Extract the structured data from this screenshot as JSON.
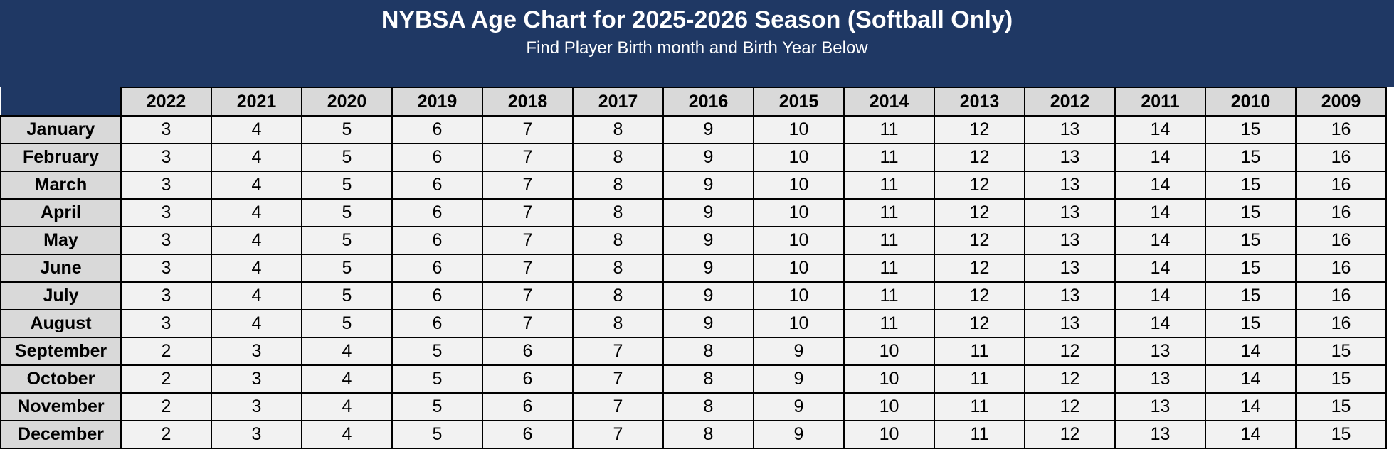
{
  "title": "NYBSA Age Chart for 2025-2026 Season (Softball Only)",
  "subtitle": "Find Player Birth month and Birth Year Below",
  "colors": {
    "banner": "#1f3864",
    "header_fill": "#d9d9d9",
    "cell_fill": "#f2f2f2",
    "border": "#000000"
  },
  "years": [
    "2022",
    "2021",
    "2020",
    "2019",
    "2018",
    "2017",
    "2016",
    "2015",
    "2014",
    "2013",
    "2012",
    "2011",
    "2010",
    "2009"
  ],
  "rows": [
    {
      "month": "January",
      "ages": [
        "3",
        "4",
        "5",
        "6",
        "7",
        "8",
        "9",
        "10",
        "11",
        "12",
        "13",
        "14",
        "15",
        "16"
      ]
    },
    {
      "month": "February",
      "ages": [
        "3",
        "4",
        "5",
        "6",
        "7",
        "8",
        "9",
        "10",
        "11",
        "12",
        "13",
        "14",
        "15",
        "16"
      ]
    },
    {
      "month": "March",
      "ages": [
        "3",
        "4",
        "5",
        "6",
        "7",
        "8",
        "9",
        "10",
        "11",
        "12",
        "13",
        "14",
        "15",
        "16"
      ]
    },
    {
      "month": "April",
      "ages": [
        "3",
        "4",
        "5",
        "6",
        "7",
        "8",
        "9",
        "10",
        "11",
        "12",
        "13",
        "14",
        "15",
        "16"
      ]
    },
    {
      "month": "May",
      "ages": [
        "3",
        "4",
        "5",
        "6",
        "7",
        "8",
        "9",
        "10",
        "11",
        "12",
        "13",
        "14",
        "15",
        "16"
      ]
    },
    {
      "month": "June",
      "ages": [
        "3",
        "4",
        "5",
        "6",
        "7",
        "8",
        "9",
        "10",
        "11",
        "12",
        "13",
        "14",
        "15",
        "16"
      ]
    },
    {
      "month": "July",
      "ages": [
        "3",
        "4",
        "5",
        "6",
        "7",
        "8",
        "9",
        "10",
        "11",
        "12",
        "13",
        "14",
        "15",
        "16"
      ]
    },
    {
      "month": "August",
      "ages": [
        "3",
        "4",
        "5",
        "6",
        "7",
        "8",
        "9",
        "10",
        "11",
        "12",
        "13",
        "14",
        "15",
        "16"
      ]
    },
    {
      "month": "September",
      "ages": [
        "2",
        "3",
        "4",
        "5",
        "6",
        "7",
        "8",
        "9",
        "10",
        "11",
        "12",
        "13",
        "14",
        "15"
      ]
    },
    {
      "month": "October",
      "ages": [
        "2",
        "3",
        "4",
        "5",
        "6",
        "7",
        "8",
        "9",
        "10",
        "11",
        "12",
        "13",
        "14",
        "15"
      ]
    },
    {
      "month": "November",
      "ages": [
        "2",
        "3",
        "4",
        "5",
        "6",
        "7",
        "8",
        "9",
        "10",
        "11",
        "12",
        "13",
        "14",
        "15"
      ]
    },
    {
      "month": "December",
      "ages": [
        "2",
        "3",
        "4",
        "5",
        "6",
        "7",
        "8",
        "9",
        "10",
        "11",
        "12",
        "13",
        "14",
        "15"
      ]
    }
  ]
}
